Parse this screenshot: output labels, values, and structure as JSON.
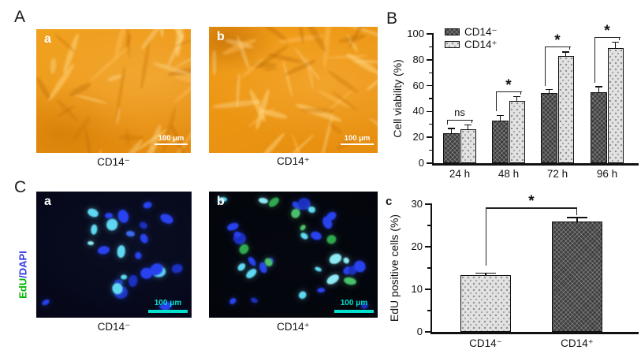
{
  "figure": {
    "panel_a_label": "A",
    "panel_b_label": "B",
    "panel_c_label": "C",
    "panel_c2_label": "c"
  },
  "panel_a": {
    "images": [
      {
        "label": "a",
        "caption": "CD14⁻",
        "scale_bar": "100 μm"
      },
      {
        "label": "b",
        "caption": "CD14⁺",
        "scale_bar": "100 μm"
      }
    ]
  },
  "panel_c": {
    "stain_label_edu": "EdU",
    "stain_label_dapi": "/DAPI",
    "images": [
      {
        "label": "a",
        "caption": "CD14⁻",
        "scale_bar": "100 μm"
      },
      {
        "label": "b",
        "caption": "CD14⁺",
        "scale_bar": "100 μm"
      }
    ]
  },
  "chart_data": [
    {
      "id": "cell-viability",
      "type": "bar",
      "title": "",
      "ylabel": "Cell viability (%)",
      "ylim": [
        0,
        100
      ],
      "yticks": [
        0,
        20,
        40,
        60,
        80,
        100
      ],
      "minor_ticks": [
        10,
        30,
        50,
        70,
        90
      ],
      "categories": [
        "24 h",
        "48 h",
        "72 h",
        "96 h"
      ],
      "series": [
        {
          "name": "CD14⁻",
          "fill": "dark-hatch",
          "values": [
            23,
            33,
            54,
            55
          ],
          "errors": [
            4,
            4,
            3,
            4
          ]
        },
        {
          "name": "CD14⁺",
          "fill": "light-dot",
          "values": [
            26,
            48,
            83,
            89
          ],
          "errors": [
            3.5,
            3.5,
            3,
            4.5
          ]
        }
      ],
      "significance": [
        "ns",
        "*",
        "*",
        "*"
      ],
      "legend_position": "top-left",
      "grid": false
    },
    {
      "id": "edu-positive",
      "type": "bar",
      "title": "",
      "ylabel": "EdU positive cells (%)",
      "ylim": [
        0,
        30
      ],
      "yticks": [
        0,
        10,
        20,
        30
      ],
      "minor_ticks": [
        5,
        15,
        25
      ],
      "categories": [
        "CD14⁻",
        "CD14⁺"
      ],
      "series": [
        {
          "name": "EdU positive cells",
          "values": [
            13.3,
            26
          ],
          "errors": [
            0.5,
            0.8
          ],
          "fills": [
            "light-dot",
            "dark-hatch"
          ]
        }
      ],
      "significance": [
        "*"
      ],
      "grid": false
    }
  ],
  "colors": {
    "dark_bar": "#3e3e3e",
    "light_bar": "#e2e2e2",
    "axis": "#111111",
    "edu_green": "#00b400",
    "dapi_blue": "#2a35e6",
    "scalebar_cyan": "#00e0cf",
    "scalebar_white": "#ffffff",
    "phase_orange": "#ec9514"
  }
}
